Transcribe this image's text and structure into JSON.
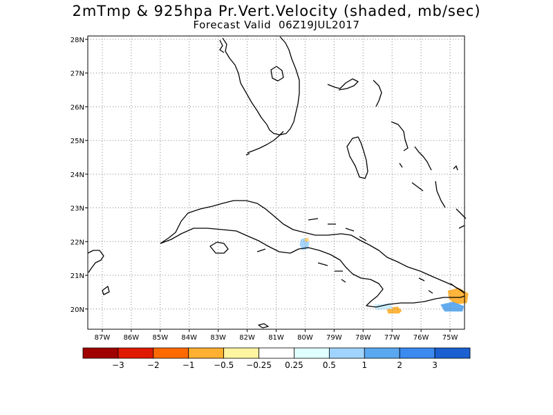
{
  "header": {
    "title": "2mTmp & 925hpa Pr.Vert.Velocity (shaded, mb/sec)",
    "subtitle": "Forecast Valid  06Z19JUL2017"
  },
  "map": {
    "lon_range": [
      -87.5,
      -74.5
    ],
    "lat_range": [
      19.4,
      28.1
    ],
    "grid": "dotted",
    "lat_labels": [
      "20N",
      "21N",
      "22N",
      "23N",
      "24N",
      "25N",
      "26N",
      "27N",
      "28N"
    ],
    "lon_labels": [
      "87W",
      "86W",
      "85W",
      "84W",
      "83W",
      "82W",
      "81W",
      "80W",
      "79W",
      "78W",
      "77W",
      "76W",
      "75W"
    ]
  },
  "colorbar": {
    "labels": [
      "−3",
      "−2",
      "−1",
      "−0.5",
      "−0.25",
      "0.25",
      "0.5",
      "1",
      "2",
      "3"
    ],
    "colors": [
      "#a00000",
      "#e01a00",
      "#ff6a00",
      "#ffb030",
      "#fff5a0",
      "#ffffff",
      "#e0ffff",
      "#a0d4ff",
      "#5aa8f0",
      "#3a8af0",
      "#1a60d0"
    ]
  },
  "shading": [
    {
      "name": "cuba-north-blue",
      "color": "#a0d4ff",
      "lon": -80.0,
      "lat": 21.95
    },
    {
      "name": "cuba-north-yellow",
      "color": "#ffd070",
      "lon": -79.95,
      "lat": 22.05
    },
    {
      "name": "cuba-southeast-orange",
      "color": "#ffb030",
      "lon": -76.95,
      "lat": 19.95
    },
    {
      "name": "cuba-southeast-lightblue",
      "color": "#c8ecff",
      "lon": -77.3,
      "lat": 20.05
    },
    {
      "name": "haiti-orange",
      "color": "#ffb030",
      "lon": -74.7,
      "lat": 20.3
    },
    {
      "name": "haiti-blue",
      "color": "#5aa8f0",
      "lon": -74.9,
      "lat": 20.05
    }
  ]
}
